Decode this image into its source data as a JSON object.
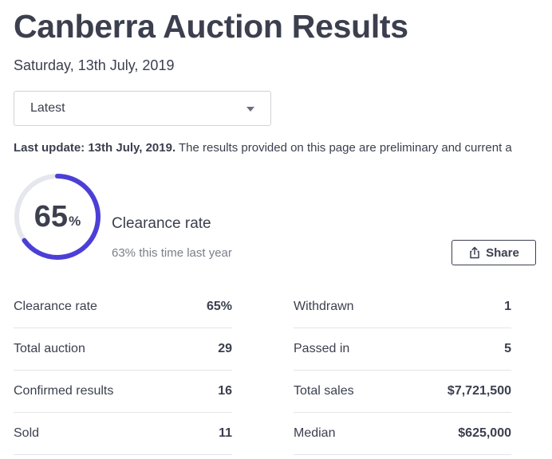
{
  "header": {
    "title": "Canberra Auction Results",
    "date": "Saturday, 13th July, 2019"
  },
  "filter": {
    "selected": "Latest"
  },
  "notice": {
    "label": "Last update: 13th July, 2019.",
    "text": " The results provided on this page are preliminary and current a"
  },
  "clearance": {
    "value": "65",
    "unit": "%",
    "fraction": 0.65,
    "label": "Clearance rate",
    "last_year": "63% this time last year",
    "colors": {
      "arc": "#4c3fd6",
      "track": "#e6e7ec"
    }
  },
  "share": {
    "label": "Share",
    "icon": "share-icon"
  },
  "stats": {
    "left": [
      {
        "label": "Clearance rate",
        "value": "65%"
      },
      {
        "label": "Total auction",
        "value": "29"
      },
      {
        "label": "Confirmed results",
        "value": "16"
      },
      {
        "label": "Sold",
        "value": "11"
      }
    ],
    "right": [
      {
        "label": "Withdrawn",
        "value": "1"
      },
      {
        "label": "Passed in",
        "value": "5"
      },
      {
        "label": "Total sales",
        "value": "$7,721,500"
      },
      {
        "label": "Median",
        "value": "$625,000"
      }
    ]
  }
}
